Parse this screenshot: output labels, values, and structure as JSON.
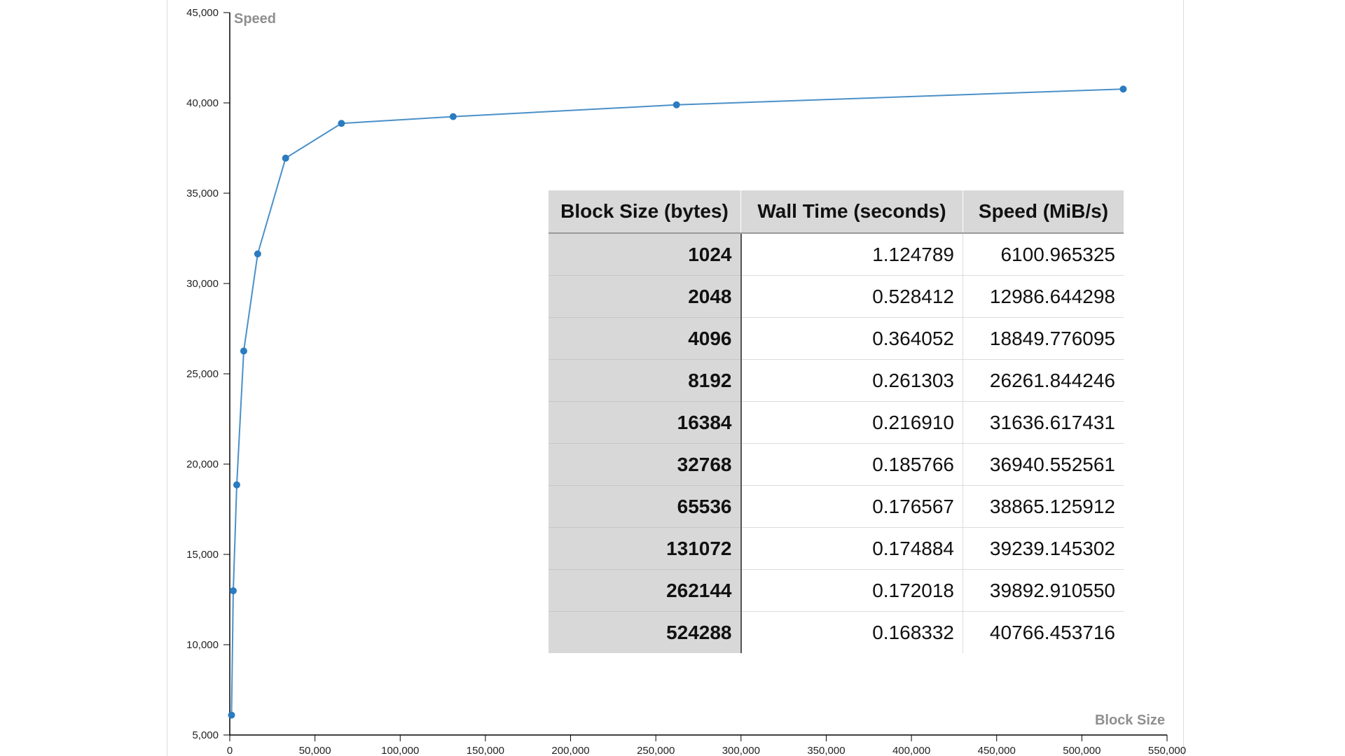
{
  "chart_data": {
    "type": "line",
    "xlabel": "Block Size",
    "ylabel": "Speed",
    "xlim": [
      0,
      550000
    ],
    "ylim": [
      5000,
      45000
    ],
    "x_ticks": [
      "0",
      "50,000",
      "100,000",
      "150,000",
      "200,000",
      "250,000",
      "300,000",
      "350,000",
      "400,000",
      "450,000",
      "500,000",
      "550,000"
    ],
    "y_ticks": [
      "5,000",
      "10,000",
      "15,000",
      "20,000",
      "25,000",
      "30,000",
      "35,000",
      "40,000",
      "45,000"
    ],
    "series_color": "#4a90c8",
    "points": [
      {
        "x": 1024,
        "y": 6100.965325
      },
      {
        "x": 2048,
        "y": 12986.644298
      },
      {
        "x": 4096,
        "y": 18849.776095
      },
      {
        "x": 8192,
        "y": 26261.844246
      },
      {
        "x": 16384,
        "y": 31636.617431
      },
      {
        "x": 32768,
        "y": 36940.552561
      },
      {
        "x": 65536,
        "y": 38865.125912
      },
      {
        "x": 131072,
        "y": 39239.145302
      },
      {
        "x": 262144,
        "y": 39892.91055
      },
      {
        "x": 524288,
        "y": 40766.453716
      }
    ]
  },
  "table": {
    "headers": [
      "Block Size (bytes)",
      "Wall Time (seconds)",
      "Speed (MiB/s)"
    ],
    "rows": [
      [
        "1024",
        "1.124789",
        "6100.965325"
      ],
      [
        "2048",
        "0.528412",
        "12986.644298"
      ],
      [
        "4096",
        "0.364052",
        "18849.776095"
      ],
      [
        "8192",
        "0.261303",
        "26261.844246"
      ],
      [
        "16384",
        "0.216910",
        "31636.617431"
      ],
      [
        "32768",
        "0.185766",
        "36940.552561"
      ],
      [
        "65536",
        "0.176567",
        "38865.125912"
      ],
      [
        "131072",
        "0.174884",
        "39239.145302"
      ],
      [
        "262144",
        "0.172018",
        "39892.910550"
      ],
      [
        "524288",
        "0.168332",
        "40766.453716"
      ]
    ]
  }
}
